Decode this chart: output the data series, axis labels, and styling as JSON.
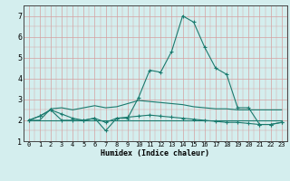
{
  "xlabel": "Humidex (Indice chaleur)",
  "x": [
    0,
    1,
    2,
    3,
    4,
    5,
    6,
    7,
    8,
    9,
    10,
    11,
    12,
    13,
    14,
    15,
    16,
    17,
    18,
    19,
    20,
    21,
    22,
    23
  ],
  "line1": [
    2.0,
    2.2,
    2.5,
    2.0,
    2.0,
    2.0,
    2.1,
    1.5,
    2.1,
    2.1,
    3.1,
    4.4,
    4.3,
    5.3,
    7.0,
    6.7,
    5.5,
    4.5,
    4.2,
    2.6,
    2.6,
    1.8,
    1.8,
    1.9
  ],
  "line2": [
    2.0,
    2.2,
    2.5,
    2.3,
    2.1,
    2.0,
    2.1,
    1.9,
    2.1,
    2.15,
    2.2,
    2.25,
    2.2,
    2.15,
    2.1,
    2.05,
    2.0,
    1.95,
    1.9,
    1.9,
    1.85,
    1.8,
    1.8,
    1.9
  ],
  "line3": [
    2.0,
    2.0,
    2.55,
    2.6,
    2.5,
    2.6,
    2.7,
    2.6,
    2.65,
    2.8,
    2.95,
    2.9,
    2.85,
    2.8,
    2.75,
    2.65,
    2.6,
    2.55,
    2.55,
    2.5,
    2.5,
    2.5,
    2.5,
    2.5
  ],
  "line4": [
    2.0,
    2.0,
    2.0,
    2.0,
    2.0,
    2.0,
    2.0,
    2.0,
    2.0,
    2.0,
    2.0,
    2.0,
    2.0,
    2.0,
    2.0,
    2.0,
    2.0,
    2.0,
    2.0,
    2.0,
    2.0,
    2.0,
    2.0,
    2.0
  ],
  "line_color": "#1a7a6e",
  "bg_color": "#d4eeee",
  "ylim": [
    1,
    7.5
  ],
  "xlim": [
    -0.5,
    23.5
  ],
  "yticks": [
    1,
    2,
    3,
    4,
    5,
    6,
    7
  ],
  "xticks": [
    0,
    1,
    2,
    3,
    4,
    5,
    6,
    7,
    8,
    9,
    10,
    11,
    12,
    13,
    14,
    15,
    16,
    17,
    18,
    19,
    20,
    21,
    22,
    23
  ],
  "marker": "+",
  "marker_size": 3,
  "line_width": 0.8
}
